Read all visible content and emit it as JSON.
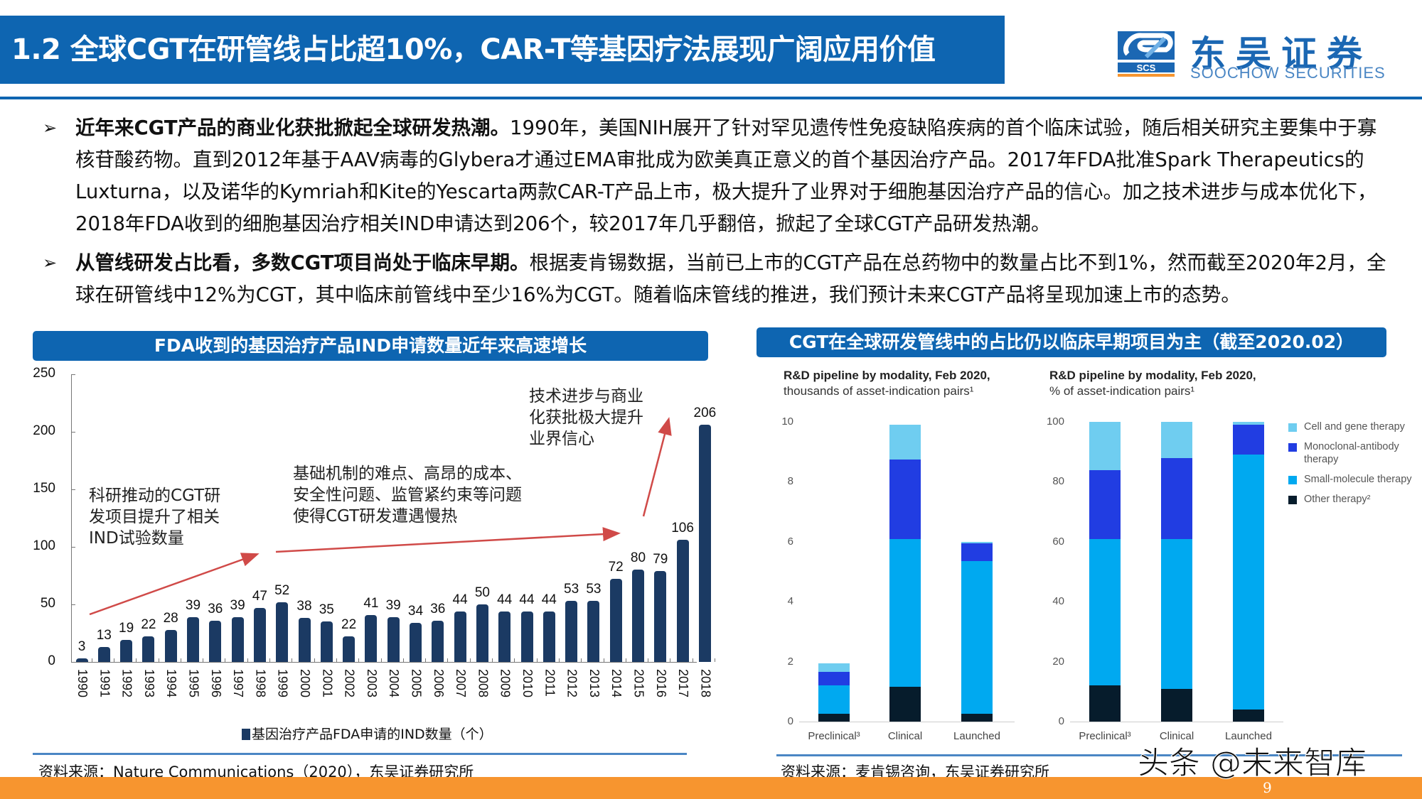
{
  "header": {
    "title": "1.2 全球CGT在研管线占比超10%，CAR-T等基因疗法展现广阔应用价值",
    "logo_cn": "东吴证券",
    "logo_en": "SOOCHOW SECURITIES",
    "logo_abbr": "SCS"
  },
  "bullets": [
    {
      "marker": "➢",
      "bold": "近年来CGT产品的商业化获批掀起全球研发热潮。",
      "text": "1990年，美国NIH展开了针对罕见遗传性免疫缺陷疾病的首个临床试验，随后相关研究主要集中于寡核苷酸药物。直到2012年基于AAV病毒的Glybera才通过EMA审批成为欧美真正意义的首个基因治疗产品。2017年FDA批准Spark Therapeutics的Luxturna，以及诺华的Kymriah和Kite的Yescarta两款CAR-T产品上市，极大提升了业界对于细胞基因治疗产品的信心。加之技术进步与成本优化下，2018年FDA收到的细胞基因治疗相关IND申请达到206个，较2017年几乎翻倍，掀起了全球CGT产品研发热潮。"
    },
    {
      "marker": "➢",
      "bold": "从管线研发占比看，多数CGT项目尚处于临床早期。",
      "text": "根据麦肯锡数据，当前已上市的CGT产品在总药物中的数量占比不到1%，然而截至2020年2月，全球在研管线中12%为CGT，其中临床前管线中至少16%为CGT。随着临床管线的推进，我们预计未来CGT产品将呈现加速上市的态势。"
    }
  ],
  "left_panel": {
    "heading": "FDA收到的基因治疗产品IND申请数量近年来高速增长",
    "annotations": [
      "科研推动的CGT研\n发项目提升了相关\nIND试验数量",
      "基础机制的难点、高昂的成本、\n安全性问题、监管紧约束等问题\n使得CGT研发遭遇慢热",
      "技术进步与商业\n化获批极大提升\n业界信心"
    ],
    "legend": "基因治疗产品FDA申请的IND数量（个）",
    "source": "资料来源：Nature Communications（2020），东吴证券研究所"
  },
  "right_panel": {
    "heading": "CGT在全球研发管线中的占比仍以临床早期项目为主（截至2020.02）",
    "chart1_title_bold": "R&D pipeline by modality, Feb 2020,",
    "chart1_title_sub": "thousands of asset-indication pairs¹",
    "chart2_title_bold": "R&D pipeline by modality, Feb 2020,",
    "chart2_title_sub": "% of asset-indication pairs¹",
    "legend": [
      {
        "label": "Cell and gene therapy",
        "color": "#6fcdf0"
      },
      {
        "label": "Monoclonal-antibody therapy",
        "color": "#213de2"
      },
      {
        "label": "Small-molecule therapy",
        "color": "#00a9f0"
      },
      {
        "label": "Other therapy²",
        "color": "#061c2c"
      }
    ],
    "source": "资料来源：麦肯锡咨询，东吴证券研究所"
  },
  "footer": {
    "page_number": "9",
    "watermark": "头条 @未来智库"
  },
  "colors": {
    "brand_blue": "#0e65b1",
    "bar_navy": "#1b3a63",
    "arrow_red": "#d04a48",
    "footer_orange": "#f7952f"
  },
  "chart_data": [
    {
      "type": "bar",
      "title": "FDA收到的基因治疗产品IND申请数量近年来高速增长",
      "categories": [
        "1990",
        "1991",
        "1992",
        "1993",
        "1994",
        "1995",
        "1996",
        "1997",
        "1998",
        "1999",
        "2000",
        "2001",
        "2002",
        "2003",
        "2004",
        "2005",
        "2006",
        "2007",
        "2008",
        "2009",
        "2010",
        "2011",
        "2012",
        "2013",
        "2014",
        "2015",
        "2016",
        "2017",
        "2018"
      ],
      "values": [
        3,
        13,
        19,
        22,
        28,
        39,
        36,
        39,
        47,
        52,
        38,
        35,
        22,
        41,
        39,
        34,
        36,
        44,
        50,
        44,
        44,
        44,
        53,
        53,
        72,
        80,
        79,
        106,
        206
      ],
      "series_name": "基因治疗产品FDA申请的IND数量（个）",
      "xlabel": "",
      "ylabel": "",
      "ylim": [
        0,
        250
      ],
      "yticks": [
        0,
        50,
        100,
        150,
        200,
        250
      ],
      "legend_position": "bottom",
      "grid": false
    },
    {
      "type": "bar",
      "stacked": true,
      "title": "R&D pipeline by modality, Feb 2020, thousands of asset-indication pairs¹",
      "categories": [
        "Preclinical³",
        "Clinical",
        "Launched"
      ],
      "series": [
        {
          "name": "Other therapy²",
          "values": [
            0.25,
            1.15,
            0.25
          ]
        },
        {
          "name": "Small-molecule therapy",
          "values": [
            0.95,
            4.95,
            5.1
          ]
        },
        {
          "name": "Monoclonal-antibody therapy",
          "values": [
            0.45,
            2.65,
            0.6
          ]
        },
        {
          "name": "Cell and gene therapy",
          "values": [
            0.3,
            1.15,
            0.05
          ]
        }
      ],
      "ylim": [
        0,
        10
      ],
      "yticks": [
        0,
        2,
        4,
        6,
        8,
        10
      ],
      "legend_position": "right"
    },
    {
      "type": "bar",
      "stacked": true,
      "title": "R&D pipeline by modality, Feb 2020, % of asset-indication pairs¹",
      "categories": [
        "Preclinical³",
        "Clinical",
        "Launched"
      ],
      "series": [
        {
          "name": "Other therapy²",
          "values": [
            12,
            11,
            4
          ]
        },
        {
          "name": "Small-molecule therapy",
          "values": [
            49,
            50,
            85
          ]
        },
        {
          "name": "Monoclonal-antibody therapy",
          "values": [
            23,
            27,
            10
          ]
        },
        {
          "name": "Cell and gene therapy",
          "values": [
            16,
            12,
            1
          ]
        }
      ],
      "ylim": [
        0,
        100
      ],
      "yticks": [
        0,
        20,
        40,
        60,
        80,
        100
      ],
      "legend_position": "right"
    }
  ]
}
